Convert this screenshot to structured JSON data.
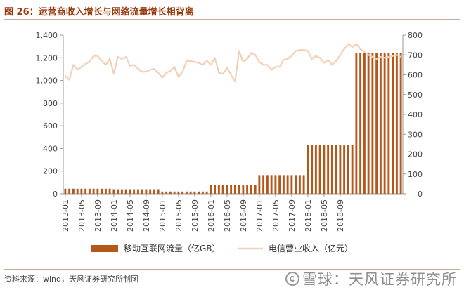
{
  "title": "图 26：运营商收入增长与网络流量增长相背离",
  "source": "资料来源：wind，天风证券研究所制图",
  "watermark": "雪球：天风证券研究所",
  "colors": {
    "bar": "#b4571b",
    "line": "#f3cfb7",
    "title": "#9a3a0c"
  },
  "chart_data": {
    "type": "bar+line",
    "x_tick_labels": [
      "2013-01",
      "2013-05",
      "2013-09",
      "2014-01",
      "2014-05",
      "2014-09",
      "2015-01",
      "2015-05",
      "2015-09",
      "2016-01",
      "2016-05",
      "2016-09",
      "2017-01",
      "2017-05",
      "2017-09",
      "2018-01",
      "2018-05",
      "2018-09"
    ],
    "start_month": "2013-01",
    "series": [
      {
        "name": "移动互联网流量（亿GB）",
        "type": "bar",
        "axis": "left",
        "values": [
          45,
          45,
          45,
          45,
          45,
          45,
          45,
          45,
          45,
          45,
          45,
          45,
          40,
          40,
          40,
          40,
          40,
          40,
          40,
          40,
          40,
          40,
          40,
          40,
          20,
          20,
          20,
          20,
          20,
          20,
          20,
          20,
          20,
          20,
          20,
          20,
          75,
          75,
          75,
          75,
          75,
          75,
          75,
          75,
          75,
          75,
          75,
          75,
          165,
          165,
          165,
          165,
          165,
          165,
          165,
          165,
          165,
          165,
          165,
          165,
          430,
          430,
          430,
          430,
          430,
          430,
          430,
          430,
          430,
          430,
          430,
          430,
          1245,
          1245,
          1245,
          1245,
          1245,
          1245,
          1245,
          1245,
          1245,
          1245,
          1245,
          1245
        ]
      },
      {
        "name": "电信营业收入（亿元）",
        "type": "line",
        "axis": "right",
        "values": [
          595,
          575,
          650,
          625,
          640,
          655,
          665,
          695,
          695,
          670,
          650,
          680,
          605,
          690,
          680,
          690,
          645,
          650,
          630,
          615,
          615,
          625,
          630,
          610,
          585,
          610,
          620,
          640,
          590,
          615,
          670,
          670,
          665,
          660,
          650,
          670,
          650,
          685,
          610,
          605,
          635,
          600,
          565,
          720,
          665,
          680,
          710,
          700,
          665,
          650,
          650,
          625,
          640,
          640,
          675,
          680,
          695,
          720,
          725,
          725,
          720,
          680,
          695,
          685,
          660,
          675,
          650,
          670,
          700,
          730,
          755,
          740,
          755,
          730,
          715,
          700,
          690,
          680,
          690,
          685,
          690,
          695,
          700,
          690
        ]
      }
    ],
    "y_left": {
      "min": 0,
      "max": 1400,
      "ticks": [
        0,
        200,
        400,
        600,
        800,
        1000,
        1200,
        1400
      ],
      "tick_labels": [
        "0",
        "200",
        "400",
        "600",
        "800",
        "1,000",
        "1,200",
        "1,400"
      ]
    },
    "y_right": {
      "min": 0,
      "max": 800,
      "ticks": [
        0,
        100,
        200,
        300,
        400,
        500,
        600,
        700,
        800
      ],
      "tick_labels": [
        "0",
        "100",
        "200",
        "300",
        "400",
        "500",
        "600",
        "700",
        "800"
      ]
    },
    "grid": false,
    "legend_position": "bottom"
  }
}
